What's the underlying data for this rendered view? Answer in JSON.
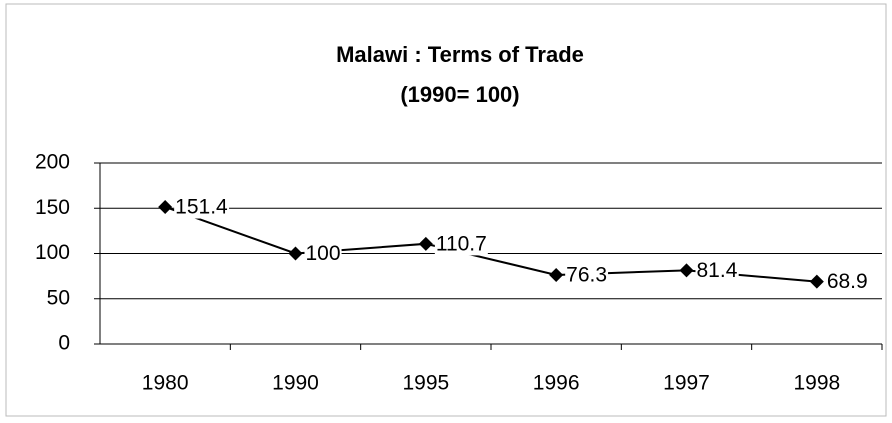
{
  "chart_data": {
    "type": "line",
    "title": "Malawi : Terms of Trade",
    "subtitle": "(1990= 100)",
    "categories": [
      "1980",
      "1990",
      "1995",
      "1996",
      "1997",
      "1998"
    ],
    "values": [
      151.4,
      100,
      110.7,
      76.3,
      81.4,
      68.9
    ],
    "color": "#000000",
    "ylim": [
      0,
      200
    ],
    "yticks": [
      0,
      50,
      100,
      150,
      200
    ],
    "grid": true
  }
}
